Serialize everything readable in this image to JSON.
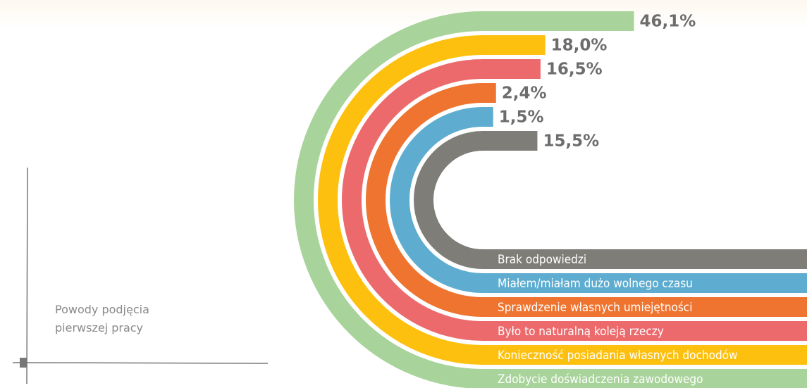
{
  "chart_data": {
    "type": "arc-bar",
    "title": "Powody podjęcia pierwszej pracy",
    "categories": [
      "Zdobycie doświadczenia zawodowego",
      "Konieczność posiadania własnych dochodów",
      "Było to naturalną koleją rzeczy",
      "Sprawdzenie własnych umiejętności",
      "Miałem/miałam dużo wolnego czasu",
      "Brak odpowiedzi"
    ],
    "values": [
      46.1,
      18.0,
      16.5,
      2.4,
      1.5,
      15.5
    ],
    "value_labels": [
      "46,1%",
      "18,0%",
      "16,5%",
      "2,4%",
      "1,5%",
      "15,5%"
    ],
    "colors": [
      "#a8d39a",
      "#fdc00f",
      "#ec6a6c",
      "#ee7430",
      "#5eadd0",
      "#7f7d78"
    ]
  }
}
